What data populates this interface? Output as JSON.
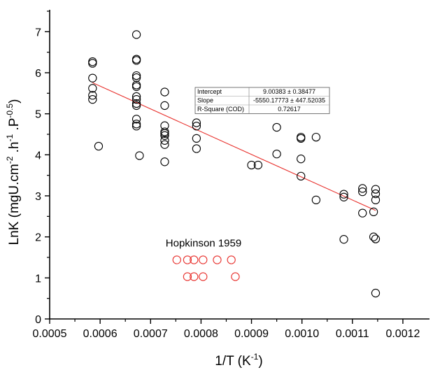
{
  "chart_data": {
    "type": "scatter",
    "xlabel": "1/T (K",
    "xlabel_sup": "-1",
    "xlabel_end": ")",
    "ylabel_parts": [
      {
        "t": "LnK (mgU.cm",
        "sup": false
      },
      {
        "t": "-2",
        "sup": true
      },
      {
        "t": " .h",
        "sup": false
      },
      {
        "t": "-1",
        "sup": true
      },
      {
        "t": " .P",
        "sup": false
      },
      {
        "t": "-0.5",
        "sup": true
      },
      {
        "t": ")",
        "sup": false
      }
    ],
    "xlim": [
      0.0005,
      0.00125
    ],
    "ylim": [
      0,
      7.5
    ],
    "x_ticks": [
      0.0005,
      0.0006,
      0.0007,
      0.0008,
      0.0009,
      0.001,
      0.0011,
      0.0012
    ],
    "x_tick_labels": [
      "0.0005",
      "0.0006",
      "0.0007",
      "0.0008",
      "0.0009",
      "0.0010",
      "0.0011",
      "0.0012"
    ],
    "y_ticks": [
      0,
      1,
      2,
      3,
      4,
      5,
      6,
      7
    ],
    "y_tick_labels": [
      "0",
      "1",
      "2",
      "3",
      "4",
      "5",
      "6",
      "7"
    ],
    "grid": false,
    "series": [
      {
        "color": "#000000",
        "marker": "open-circle",
        "points": [
          [
            0.000585,
            6.27
          ],
          [
            0.000585,
            6.23
          ],
          [
            0.000585,
            5.87
          ],
          [
            0.000585,
            5.62
          ],
          [
            0.000585,
            5.45
          ],
          [
            0.000585,
            5.35
          ],
          [
            0.000597,
            4.21
          ],
          [
            0.000672,
            6.93
          ],
          [
            0.000672,
            6.33
          ],
          [
            0.000672,
            6.3
          ],
          [
            0.000672,
            5.93
          ],
          [
            0.000672,
            5.88
          ],
          [
            0.000672,
            5.7
          ],
          [
            0.000672,
            5.66
          ],
          [
            0.000672,
            5.42
          ],
          [
            0.000672,
            5.35
          ],
          [
            0.000672,
            5.25
          ],
          [
            0.000672,
            5.2
          ],
          [
            0.000672,
            4.87
          ],
          [
            0.000672,
            4.75
          ],
          [
            0.000672,
            4.7
          ],
          [
            0.000678,
            3.98
          ],
          [
            0.000728,
            5.53
          ],
          [
            0.000728,
            5.2
          ],
          [
            0.000728,
            4.71
          ],
          [
            0.000728,
            4.56
          ],
          [
            0.000728,
            4.52
          ],
          [
            0.000728,
            4.47
          ],
          [
            0.000728,
            4.35
          ],
          [
            0.000728,
            4.25
          ],
          [
            0.000728,
            3.83
          ],
          [
            0.000791,
            4.78
          ],
          [
            0.000791,
            4.7
          ],
          [
            0.000791,
            4.4
          ],
          [
            0.000791,
            4.15
          ],
          [
            0.0009,
            3.75
          ],
          [
            0.000913,
            3.75
          ],
          [
            0.00095,
            4.67
          ],
          [
            0.00095,
            4.02
          ],
          [
            0.000998,
            4.43
          ],
          [
            0.000998,
            4.4
          ],
          [
            0.000998,
            3.9
          ],
          [
            0.000998,
            3.48
          ],
          [
            0.001028,
            4.43
          ],
          [
            0.001028,
            2.9
          ],
          [
            0.001083,
            3.04
          ],
          [
            0.001083,
            2.97
          ],
          [
            0.001083,
            1.94
          ],
          [
            0.00112,
            3.18
          ],
          [
            0.00112,
            3.1
          ],
          [
            0.00112,
            2.58
          ],
          [
            0.001142,
            2.61
          ],
          [
            0.001142,
            2.0
          ],
          [
            0.001146,
            3.16
          ],
          [
            0.001146,
            3.05
          ],
          [
            0.001146,
            2.9
          ],
          [
            0.001146,
            1.95
          ],
          [
            0.001146,
            0.63
          ]
        ]
      },
      {
        "name": "Hopkinson 1959",
        "color": "#e8312d",
        "marker": "open-circle",
        "points": [
          [
            0.000752,
            1.44
          ],
          [
            0.000773,
            1.44
          ],
          [
            0.000786,
            1.44
          ],
          [
            0.000804,
            1.44
          ],
          [
            0.000832,
            1.44
          ],
          [
            0.00086,
            1.44
          ],
          [
            0.000773,
            1.03
          ],
          [
            0.000786,
            1.03
          ],
          [
            0.000804,
            1.03
          ],
          [
            0.000868,
            1.03
          ]
        ]
      }
    ],
    "fit_line": {
      "color": "#e8312d",
      "x_range": [
        0.000585,
        0.001146
      ],
      "intercept": 9.00383,
      "slope": -5550.17773
    },
    "annotation": {
      "text": "Hopkinson 1959",
      "x": 0.000805,
      "y": 1.85
    },
    "stats_table": {
      "rows": [
        {
          "label": "Intercept",
          "value": "9.00383 ± 0.38477"
        },
        {
          "label": "Slope",
          "value": "-5550.17773 ± 447.52035"
        },
        {
          "label": "R-Square (COD)",
          "value": "0.72617"
        }
      ]
    }
  }
}
